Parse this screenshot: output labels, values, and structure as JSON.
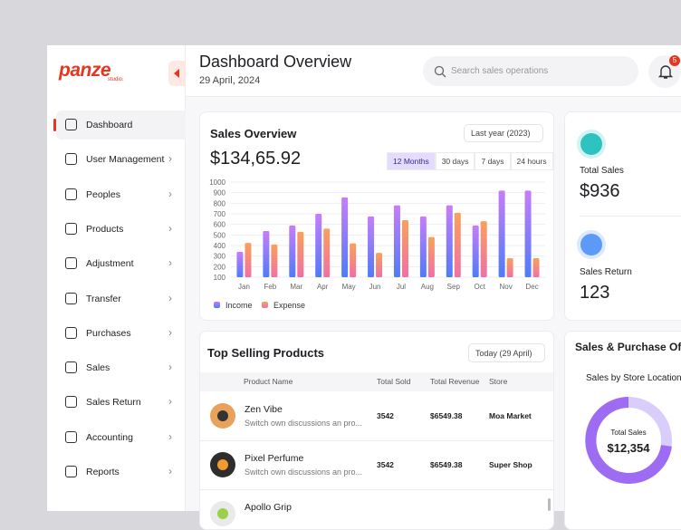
{
  "sidebar": {
    "logo": "panze",
    "logo_sub": "studio.",
    "nav": [
      "Dashboard",
      "User Management",
      "Peoples",
      "Products",
      "Adjustment",
      "Transfer",
      "Purchases",
      "Sales",
      "Sales Return",
      "Accounting",
      "Reports"
    ]
  },
  "header": {
    "title": "Dashboard Overview",
    "date": "29 April, 2024",
    "search_placeholder": "Search sales operations",
    "notifications": "5"
  },
  "sales_overview": {
    "title": "Sales Overview",
    "period": "Last year (2023)",
    "total": "$134,65.92",
    "ranges": [
      "12 Months",
      "30 days",
      "7 days",
      "24 hours"
    ],
    "chart": {
      "type": "bar",
      "categories": [
        "Jan",
        "Feb",
        "Mar",
        "Apr",
        "May",
        "Jun",
        "Jul",
        "Aug",
        "Sep",
        "Oct",
        "Nov",
        "Dec"
      ],
      "series": [
        {
          "name": "Income",
          "gradient": [
            "#4f7cf7",
            "#c77dfa"
          ],
          "values": [
            340,
            537,
            590,
            700,
            855,
            675,
            780,
            675,
            780,
            590,
            920,
            920
          ]
        },
        {
          "name": "Expense",
          "gradient": [
            "#f26fa6",
            "#f7a25a"
          ],
          "values": [
            425,
            410,
            530,
            560,
            420,
            330,
            640,
            480,
            710,
            630,
            280,
            280
          ]
        }
      ],
      "ylim": [
        100,
        1000
      ],
      "yticks": [
        100,
        200,
        300,
        400,
        500,
        600,
        700,
        800,
        900,
        1000
      ],
      "grid": true
    }
  },
  "stats": [
    {
      "label": "Total Sales",
      "value": "$936"
    },
    {
      "label": "Sales Return",
      "value": "123"
    }
  ],
  "top_selling": {
    "title": "Top Selling Products",
    "filter": "Today (29 April)",
    "columns": [
      "Product Name",
      "Total Sold",
      "Total Revenue",
      "Store"
    ],
    "rows": [
      {
        "name": "Zen Vibe",
        "description": "Switch own discussions an pro...",
        "total_sold": "3542",
        "total_revenue": "$6549.38",
        "store": "Moa Market"
      },
      {
        "name": "Pixel Perfume",
        "description": "Switch own discussions an pro...",
        "total_sold": "3542",
        "total_revenue": "$6549.38",
        "store": "Super Shop"
      },
      {
        "name": "Apollo Grip"
      }
    ]
  },
  "sales_purchase": {
    "title": "Sales & Purchase Of",
    "subtitle": "Sales by Store Location",
    "donut_label": "Total Sales",
    "donut_value": "$12,354"
  }
}
